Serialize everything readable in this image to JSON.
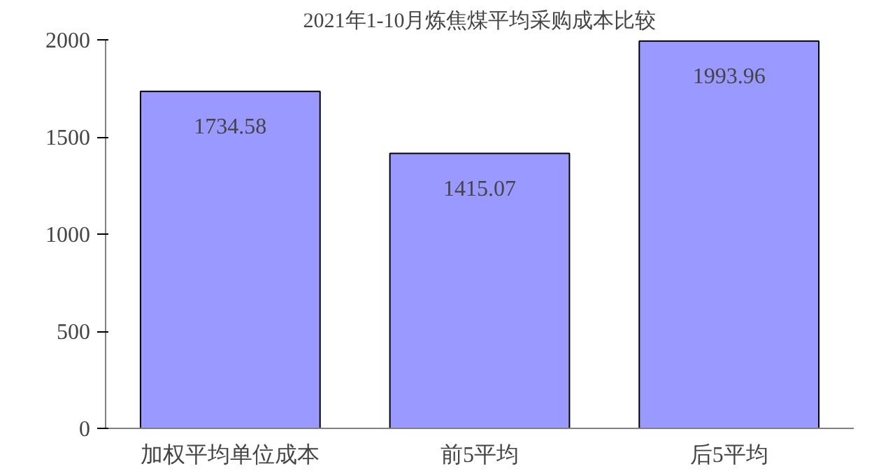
{
  "chart_data": {
    "type": "bar",
    "title": "2021年1-10月炼焦煤平均采购成本比较",
    "categories": [
      "加权平均单位成本",
      "前5平均",
      "后5平均"
    ],
    "values": [
      1734.58,
      1415.07,
      1993.96
    ],
    "color": "#9999ff",
    "ylim": [
      0,
      2000
    ],
    "yticks": [
      0,
      500,
      1000,
      1500,
      2000
    ],
    "grid": false,
    "data_labels": true
  }
}
